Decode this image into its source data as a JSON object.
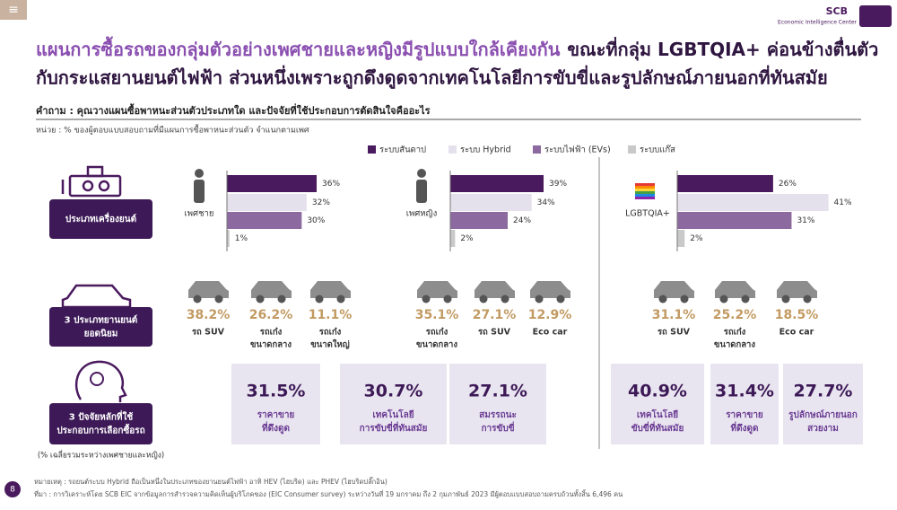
{
  "header": {
    "menu": "≡",
    "logo": "SCB",
    "logo_sub": "Economic Intelligence Center",
    "title_highlight": "แผนการซื้อรถของกลุ่มตัวอย่างเพศชายและหญิงมีรูปแบบใกล้เคียงกัน",
    "title_line1_rest": "ขณะที่กลุ่ม LGBTQIA+ ค่อนข้างตื่นตัว",
    "title_line2": "กับกระแสยานยนต์ไฟฟ้า ส่วนหนึ่งเพราะถูกดึงดูดจากเทคโนโลยีการขับขี่และรูปลักษณ์ภายนอกที่ทันสมัย",
    "question": "คำถาม : คุณวางแผนซื้อพาหนะส่วนตัวประเภทใด และปัจจัยที่ใช้ประกอบการตัดสินใจคืออะไร",
    "unit": "หน่วย : % ของผู้ตอบแบบสอบถามที่มีแผนการซื้อพาหนะส่วนตัว จำแนกตามเพศ"
  },
  "legend": [
    {
      "name": "ระบบสันดาป",
      "color": "#4a1a5e"
    },
    {
      "name": "ระบบ Hybrid",
      "color": "#e4e1ec"
    },
    {
      "name": "ระบบไฟฟ้า (EVs)",
      "color": "#8c6aa0"
    },
    {
      "name": "ระบบแก๊ส",
      "color": "#c9c9c9"
    }
  ],
  "row_labels": [
    {
      "lines": [
        "ประเภทเครื่องยนต์"
      ]
    },
    {
      "lines": [
        "3 ประเภทยานยนต์",
        "ยอดนิยม"
      ]
    },
    {
      "lines": [
        "3 ปัจจัยหลักที่ใช้",
        "ประกอบการเลือกซื้อรถ"
      ],
      "note": "(% เฉลี่ยรวมระหว่างเพศชายและหญิง)"
    }
  ],
  "chart_data": [
    {
      "type": "bar",
      "label": "เพศชาย",
      "values": [
        36,
        32,
        30,
        1
      ],
      "value_labels": [
        "36%",
        "32%",
        "30%",
        "1%"
      ],
      "xlim": [
        0,
        45
      ]
    },
    {
      "type": "bar",
      "label": "เพศหญิง",
      "values": [
        39,
        34,
        24,
        2
      ],
      "value_labels": [
        "39%",
        "34%",
        "24%",
        "2%"
      ],
      "xlim": [
        0,
        45
      ]
    },
    {
      "type": "bar",
      "label": "LGBTQIA+",
      "values": [
        26,
        41,
        31,
        2
      ],
      "value_labels": [
        "26%",
        "41%",
        "31%",
        "2%"
      ],
      "xlim": [
        0,
        45
      ]
    }
  ],
  "cars": [
    [
      {
        "share": "38.2%",
        "lines": [
          "รถ SUV"
        ]
      },
      {
        "share": "26.2%",
        "lines": [
          "รถเก๋ง",
          "ขนาดกลาง"
        ]
      },
      {
        "share": "11.1%",
        "lines": [
          "รถเก๋ง",
          "ขนาดใหญ่"
        ]
      }
    ],
    [
      {
        "share": "35.1%",
        "lines": [
          "รถเก๋ง",
          "ขนาดกลาง"
        ]
      },
      {
        "share": "27.1%",
        "lines": [
          "รถ SUV"
        ]
      },
      {
        "share": "12.9%",
        "lines": [
          "Eco car"
        ]
      }
    ],
    [
      {
        "share": "31.1%",
        "lines": [
          "รถ SUV"
        ]
      },
      {
        "share": "25.2%",
        "lines": [
          "รถเก๋ง",
          "ขนาดกลาง"
        ]
      },
      {
        "share": "18.5%",
        "lines": [
          "Eco car"
        ]
      }
    ]
  ],
  "factors": [
    {
      "share": "31.5%",
      "lines": [
        "ราคาขาย",
        "ที่ดึงดูด"
      ]
    },
    {
      "share": "30.7%",
      "lines": [
        "เทคโนโลยี",
        "การขับขี่ที่ทันสมัย"
      ]
    },
    {
      "share": "27.1%",
      "lines": [
        "สมรรถนะ",
        "การขับขี่"
      ]
    },
    {
      "share": "40.9%",
      "lines": [
        "เทคโนโลยี",
        "ขับขี่ที่ทันสมัย"
      ]
    },
    {
      "share": "31.4%",
      "lines": [
        "ราคาขาย",
        "ที่ดึงดูด"
      ]
    },
    {
      "share": "27.7%",
      "lines": [
        "รูปลักษณ์ภายนอก",
        "สวยงาม"
      ]
    }
  ],
  "footer": {
    "page": "8",
    "note": "หมายเหตุ : รถยนต์ระบบ Hybrid ถือเป็นหนึ่งในประเภทของยานยนต์ไฟฟ้า อาทิ HEV (ไฮบริด) และ PHEV (ไฮบริดปลั๊กอิน)",
    "source": "ที่มา : การวิเคราะห์โดย SCB EIC จากข้อมูลการสำรวจความคิดเห็นผู้บริโภคของ (EIC Consumer survey) ระหว่างวันที่ 19 มกราคม ถึง 2 กุมภาพันธ์ 2023 มีผู้ตอบแบบสอบถามครบถ้วนทั้งสิ้น 6,496 คน"
  }
}
